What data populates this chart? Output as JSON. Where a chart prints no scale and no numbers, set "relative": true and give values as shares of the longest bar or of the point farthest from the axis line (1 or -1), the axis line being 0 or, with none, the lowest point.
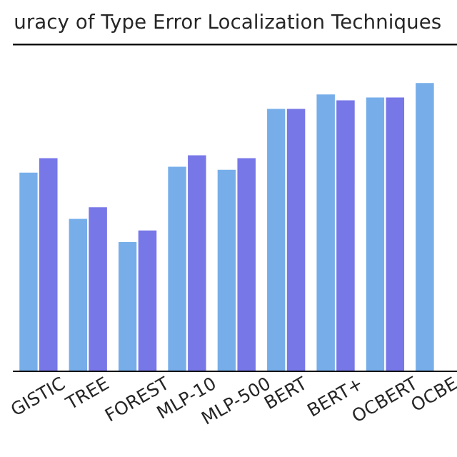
{
  "chart_data": {
    "type": "bar",
    "title": "uracy of Type Error Localization Techniques",
    "relative": true,
    "grid": false,
    "legend": false,
    "categories": [
      "GISTIC",
      "TREE",
      "FOREST",
      "MLP-10",
      "MLP-500",
      "BERT",
      "BERT+",
      "OCBERT",
      "OCBE"
    ],
    "series": [
      {
        "color": "#77aeea",
        "values": [
          0.69,
          0.53,
          0.45,
          0.71,
          0.7,
          0.91,
          0.96,
          0.95,
          1.0
        ]
      },
      {
        "color": "#7777e8",
        "values": [
          0.74,
          0.57,
          0.49,
          0.75,
          0.74,
          0.91,
          0.94,
          0.95,
          null
        ]
      }
    ]
  }
}
